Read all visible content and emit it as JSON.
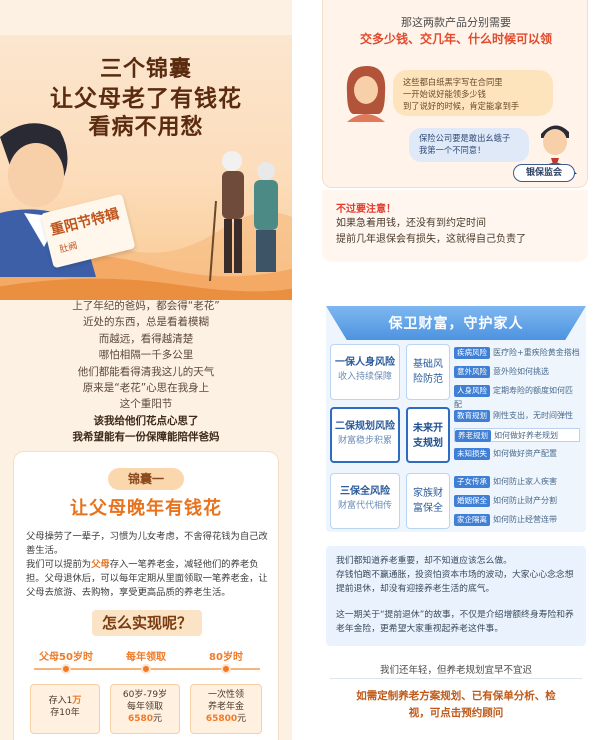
{
  "hero": {
    "title_line1": "三个锦囊",
    "title_line2": "让父母老了有钱花",
    "title_line3": "看病不用愁",
    "badge_title": "重阳节特辑",
    "badge_sub": "肚阙"
  },
  "poem": [
    "上了年纪的爸妈，都会得“老花”",
    "近处的东西，总是看着模糊",
    "而越远，看得越清楚",
    "哪怕相隔一千多公里",
    "他们都能看得清我这儿的天气",
    "原来是“老花”心思在我身上",
    "这个重阳节"
  ],
  "poem_bold": [
    "该我给他们花点心思了",
    "我希望能有一份保障能陪伴爸妈"
  ],
  "card1": {
    "tag": "锦囊一",
    "title": "让父母晚年有钱花",
    "para1": "父母操劳了一辈子，习惯为儿女考虑，不舍得花钱为自己改善生活。",
    "para2_a": "我们可以提前为",
    "para2_hl": "父母",
    "para2_b": "存入一笔养老金，减轻他们的养老负担。父母退休后，可以每年定期从里面领取一笔养老金，让父母去旅游、去购物，享受更高品质的养老生活。",
    "how": "怎么实现呢？",
    "timeline": [
      {
        "label": "父母50岁时",
        "box_line1": "存入1",
        "box_hl": "万",
        "box_line2": "存10年"
      },
      {
        "label": "每年领取",
        "box_line1": "60岁-79岁",
        "box_line2": "每年领取",
        "box_amount": "6580",
        "box_unit": "元"
      },
      {
        "label": "80岁时",
        "box_line1": "一次性领",
        "box_line2": "养老年金",
        "box_amount": "65800",
        "box_unit": "元"
      }
    ]
  },
  "top_card": {
    "q1": "那这两款产品分别需要",
    "q2": "交多少钱、交几年、什么时候可以领",
    "bubble_woman": [
      "这些都白纸黑字写在合同里",
      "一开始说好能领多少钱",
      "到了说好的时候，肯定能拿到手"
    ],
    "bubble_man": [
      "保险公司要是敢出幺蛾子",
      "我第一个不同意！"
    ],
    "regulator": "银保监会"
  },
  "warning": {
    "head": "不过要注意！",
    "line1": "如果急着用钱，还没有到约定时间",
    "line2": "提前几年退保会有损失，这就得自己负责了"
  },
  "blue": {
    "head": "保卫财富，守护家人",
    "rows": [
      {
        "main": "一保人身风险",
        "main_sub": "收入持续保障",
        "mid": [
          "基础风",
          "险防范"
        ],
        "dark": false,
        "subs": [
          {
            "k": "疾病风险",
            "v": "医疗险+重疾险黄金搭档"
          },
          {
            "k": "意外风险",
            "v": "意外险如何挑选"
          },
          {
            "k": "人身风险",
            "v": "定期寿险的额度如何匹配"
          }
        ]
      },
      {
        "main": "二保规划风险",
        "main_sub": "财富稳步积累",
        "mid": [
          "未来开",
          "支规划"
        ],
        "dark": true,
        "subs": [
          {
            "k": "教育规划",
            "v": "刚性支出，无时间弹性"
          },
          {
            "k": "养老规划",
            "v": "如何做好养老规划"
          },
          {
            "k": "未知损失",
            "v": "如何做好资产配置"
          }
        ]
      },
      {
        "main": "三保全风险",
        "main_sub": "财富代代相传",
        "mid": [
          "家族财",
          "富保全"
        ],
        "dark": false,
        "subs": [
          {
            "k": "子女传承",
            "v": "如何防止家人疾害"
          },
          {
            "k": "婚姻保全",
            "v": "如何防止财产分割"
          },
          {
            "k": "家企隔离",
            "v": "如何防止经营连带"
          }
        ]
      }
    ],
    "text": [
      "我们都知道养老重要，却不知道应该怎么做。",
      "存钱怕跑不赢通胀，投资怕资本市场的波动，大家心心念念想提前退休，却没有迎接养老生活的底气。",
      "",
      "这一期关于“提前退休”的故事，不仅是介绍增额终身寿险和养老年金险，更希望大家重视起养老这件事。"
    ],
    "note": "我们还年轻，但养老规划宜早不宜迟",
    "cta_line1": "如需定制养老方案规划、已有保单分析、检",
    "cta_line2": "视，可点击预约顾问"
  }
}
